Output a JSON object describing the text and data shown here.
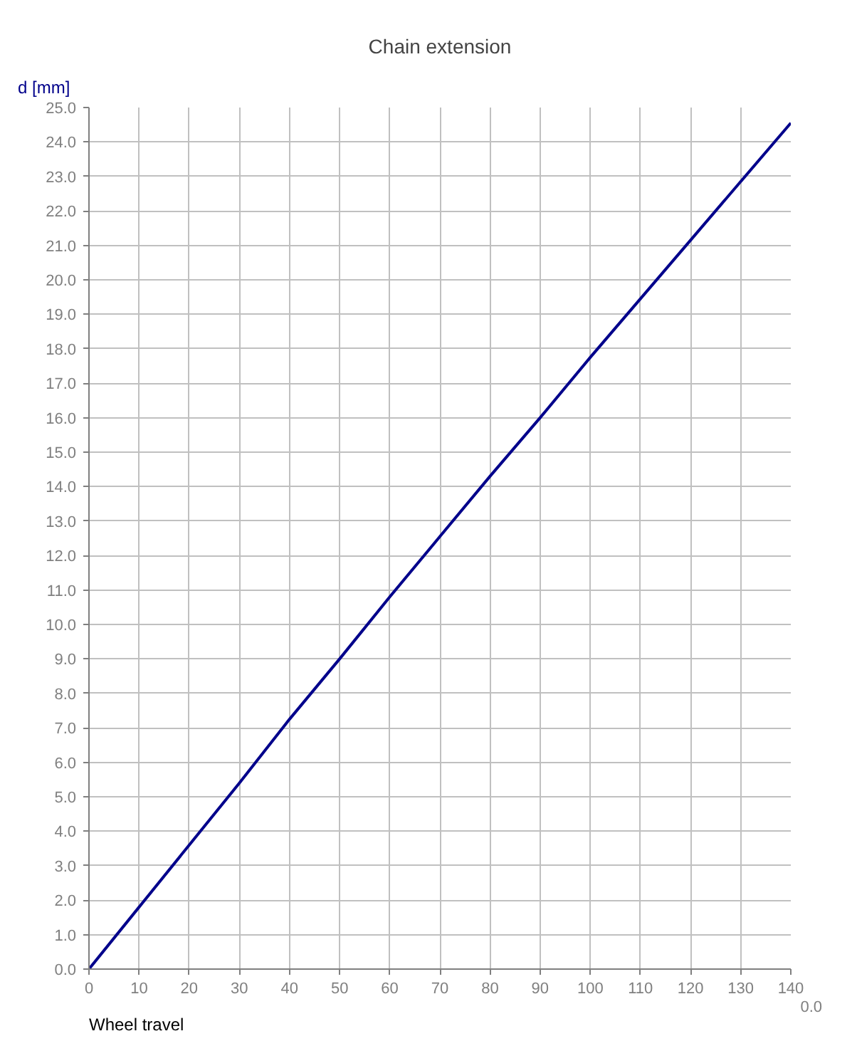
{
  "chart_data": {
    "type": "line",
    "title": "Chain extension",
    "xlabel": "Wheel travel",
    "ylabel": "d [mm]",
    "annotations": [
      "0.0"
    ],
    "x": [
      0,
      10,
      20,
      30,
      40,
      50,
      60,
      70,
      80,
      90,
      100,
      110,
      120,
      130,
      140
    ],
    "series": [
      {
        "color": "#00008b",
        "values": [
          0,
          1.8,
          3.6,
          5.4,
          7.25,
          9.0,
          10.8,
          12.55,
          14.3,
          16.0,
          17.75,
          19.45,
          21.15,
          22.85,
          24.55
        ]
      }
    ],
    "xlim": [
      0,
      140
    ],
    "xticks": [
      0,
      10,
      20,
      30,
      40,
      50,
      60,
      70,
      80,
      90,
      100,
      110,
      120,
      130,
      140
    ],
    "ylim": [
      0,
      25
    ],
    "yticks": [
      {
        "value": 0,
        "label": "0.0"
      },
      {
        "value": 1,
        "label": "1.0"
      },
      {
        "value": 2,
        "label": "2.0"
      },
      {
        "value": 3,
        "label": "3.0"
      },
      {
        "value": 4,
        "label": "4.0"
      },
      {
        "value": 5,
        "label": "5.0"
      },
      {
        "value": 6,
        "label": "6.0"
      },
      {
        "value": 7,
        "label": "7.0"
      },
      {
        "value": 8,
        "label": "8.0"
      },
      {
        "value": 9,
        "label": "9.0"
      },
      {
        "value": 10,
        "label": "10.0"
      },
      {
        "value": 11,
        "label": "11.0"
      },
      {
        "value": 12,
        "label": "12.0"
      },
      {
        "value": 13,
        "label": "13.0"
      },
      {
        "value": 14,
        "label": "14.0"
      },
      {
        "value": 15,
        "label": "15.0"
      },
      {
        "value": 16,
        "label": "16.0"
      },
      {
        "value": 17,
        "label": "17.0"
      },
      {
        "value": 18,
        "label": "18.0"
      },
      {
        "value": 19,
        "label": "19.0"
      },
      {
        "value": 20,
        "label": "20.0"
      },
      {
        "value": 21,
        "label": "21.0"
      },
      {
        "value": 22,
        "label": "22.0"
      },
      {
        "value": 23,
        "label": "23.0"
      },
      {
        "value": 24,
        "label": "24.0"
      },
      {
        "value": 25,
        "label": "25.0"
      }
    ],
    "grid": true,
    "marker": "none",
    "line_style": "solid"
  }
}
